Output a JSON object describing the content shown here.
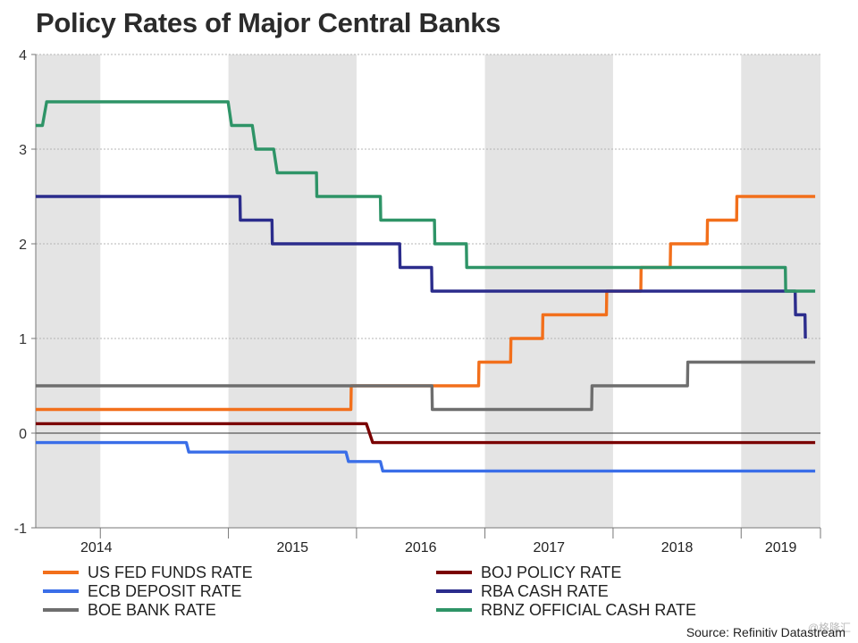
{
  "chart_data": {
    "type": "line",
    "title": "Policy Rates of Major Central Banks",
    "xlabel": "",
    "ylabel": "",
    "ylim": [
      -1,
      4
    ],
    "xlim": [
      "2013-07-01",
      "2019-08-15"
    ],
    "y_ticks": [
      "-1",
      "0",
      "1",
      "2",
      "3",
      "4"
    ],
    "y_tick_values": [
      -1,
      0,
      1,
      2,
      3,
      4
    ],
    "x_tick_labels": [
      "2014",
      "2015",
      "2016",
      "2017",
      "2018",
      "2019"
    ],
    "x_tick_dates": [
      "2014-01-01",
      "2015-01-01",
      "2016-01-01",
      "2017-01-01",
      "2018-01-01",
      "2019-01-01"
    ],
    "shaded_years": [
      [
        "2013-07-01",
        "2014-01-01"
      ],
      [
        "2015-01-01",
        "2016-01-01"
      ],
      [
        "2017-01-01",
        "2018-01-01"
      ],
      [
        "2019-01-01",
        "2019-08-15"
      ]
    ],
    "grid": true,
    "legend_position": "bottom",
    "series": [
      {
        "name": "US FED FUNDS RATE",
        "color": "#f26f1b",
        "points": [
          [
            "2013-07-01",
            0.25
          ],
          [
            "2015-12-16",
            0.25
          ],
          [
            "2015-12-17",
            0.5
          ],
          [
            "2016-12-14",
            0.5
          ],
          [
            "2016-12-15",
            0.75
          ],
          [
            "2017-03-15",
            0.75
          ],
          [
            "2017-03-16",
            1.0
          ],
          [
            "2017-06-14",
            1.0
          ],
          [
            "2017-06-15",
            1.25
          ],
          [
            "2017-12-13",
            1.25
          ],
          [
            "2017-12-14",
            1.5
          ],
          [
            "2018-03-21",
            1.5
          ],
          [
            "2018-03-22",
            1.75
          ],
          [
            "2018-06-13",
            1.75
          ],
          [
            "2018-06-14",
            2.0
          ],
          [
            "2018-09-26",
            2.0
          ],
          [
            "2018-09-27",
            2.25
          ],
          [
            "2018-12-19",
            2.25
          ],
          [
            "2018-12-20",
            2.5
          ],
          [
            "2019-07-31",
            2.5
          ]
        ]
      },
      {
        "name": "ECB DEPOSIT RATE",
        "color": "#3a6ee8",
        "points": [
          [
            "2013-07-01",
            -0.1
          ],
          [
            "2014-09-03",
            -0.1
          ],
          [
            "2014-09-10",
            -0.2
          ],
          [
            "2015-12-02",
            -0.2
          ],
          [
            "2015-12-09",
            -0.3
          ],
          [
            "2016-03-09",
            -0.3
          ],
          [
            "2016-03-16",
            -0.4
          ],
          [
            "2019-07-31",
            -0.4
          ]
        ]
      },
      {
        "name": "BOE BANK RATE",
        "color": "#6e6e6e",
        "points": [
          [
            "2013-07-01",
            0.5
          ],
          [
            "2016-08-03",
            0.5
          ],
          [
            "2016-08-04",
            0.25
          ],
          [
            "2017-11-01",
            0.25
          ],
          [
            "2017-11-02",
            0.5
          ],
          [
            "2018-08-01",
            0.5
          ],
          [
            "2018-08-02",
            0.75
          ],
          [
            "2019-07-31",
            0.75
          ]
        ]
      },
      {
        "name": "BOJ POLICY RATE",
        "color": "#7a0000",
        "points": [
          [
            "2013-07-01",
            0.1
          ],
          [
            "2016-01-29",
            0.1
          ],
          [
            "2016-02-16",
            -0.1
          ],
          [
            "2019-07-31",
            -0.1
          ]
        ]
      },
      {
        "name": "RBA CASH RATE",
        "color": "#2b2c8c",
        "points": [
          [
            "2013-07-01",
            2.5
          ],
          [
            "2015-02-03",
            2.5
          ],
          [
            "2015-02-04",
            2.25
          ],
          [
            "2015-05-05",
            2.25
          ],
          [
            "2015-05-06",
            2.0
          ],
          [
            "2016-05-03",
            2.0
          ],
          [
            "2016-05-04",
            1.75
          ],
          [
            "2016-08-02",
            1.75
          ],
          [
            "2016-08-03",
            1.5
          ],
          [
            "2019-06-04",
            1.5
          ],
          [
            "2019-06-05",
            1.25
          ],
          [
            "2019-07-02",
            1.25
          ],
          [
            "2019-07-03",
            1.0
          ]
        ]
      },
      {
        "name": "RBNZ OFFICIAL CASH RATE",
        "color": "#2e9467",
        "points": [
          [
            "2013-07-01",
            3.25
          ],
          [
            "2013-07-20",
            3.25
          ],
          [
            "2013-08-01",
            3.5
          ],
          [
            "2014-12-31",
            3.5
          ],
          [
            "2015-01-10",
            3.25
          ],
          [
            "2015-03-10",
            3.25
          ],
          [
            "2015-03-20",
            3.0
          ],
          [
            "2015-05-10",
            3.0
          ],
          [
            "2015-05-20",
            2.75
          ],
          [
            "2015-09-09",
            2.75
          ],
          [
            "2015-09-10",
            2.5
          ],
          [
            "2016-03-09",
            2.5
          ],
          [
            "2016-03-10",
            2.25
          ],
          [
            "2016-08-10",
            2.25
          ],
          [
            "2016-08-11",
            2.0
          ],
          [
            "2016-11-09",
            2.0
          ],
          [
            "2016-11-10",
            1.75
          ],
          [
            "2019-05-07",
            1.75
          ],
          [
            "2019-05-08",
            1.5
          ],
          [
            "2019-07-31",
            1.5
          ]
        ]
      }
    ]
  },
  "legend": [
    {
      "label": "US FED FUNDS RATE",
      "color": "#f26f1b"
    },
    {
      "label": "BOJ POLICY RATE",
      "color": "#7a0000"
    },
    {
      "label": "ECB DEPOSIT RATE",
      "color": "#3a6ee8"
    },
    {
      "label": "RBA CASH RATE",
      "color": "#2b2c8c"
    },
    {
      "label": "BOE BANK RATE",
      "color": "#6e6e6e"
    },
    {
      "label": "RBNZ OFFICIAL CASH RATE",
      "color": "#2e9467"
    }
  ],
  "source": "Source: Refinitiv Datastream",
  "watermark": "@格隆汇"
}
